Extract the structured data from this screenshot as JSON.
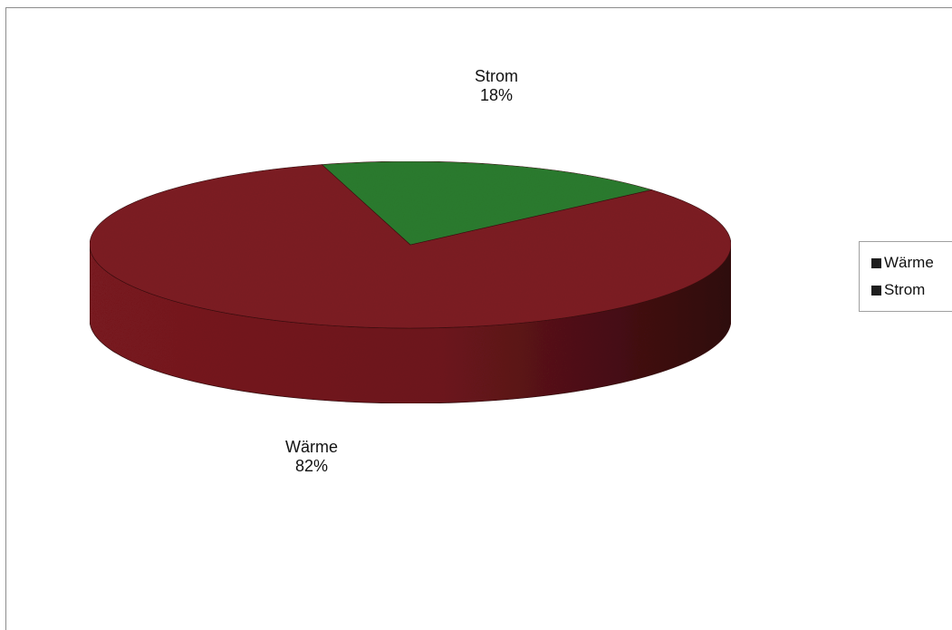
{
  "chart_data": {
    "type": "pie",
    "three_d": true,
    "slices": [
      {
        "label": "Wärme",
        "percent_label": "82%",
        "value": 82,
        "color": "#7d1c22"
      },
      {
        "label": "Strom",
        "percent_label": "18%",
        "value": 18,
        "color": "#2b7c2e"
      }
    ],
    "legend": {
      "position": "right",
      "entries": [
        "Wärme",
        "Strom"
      ],
      "swatch_color": "#1e1e1e"
    },
    "title": "",
    "grid": false
  }
}
